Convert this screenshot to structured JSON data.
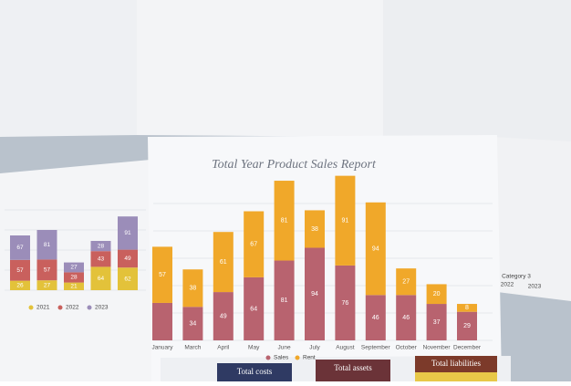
{
  "chart_data": [
    {
      "type": "stacked-bar",
      "title": "Total Year Product Sales Report",
      "categories": [
        "January",
        "March",
        "April",
        "May",
        "June",
        "July",
        "August",
        "September",
        "October",
        "November",
        "December"
      ],
      "series": [
        {
          "name": "Sales",
          "color": "#b8636f",
          "values": [
            38,
            34,
            49,
            64,
            81,
            94,
            76,
            46,
            46,
            37,
            29
          ]
        },
        {
          "name": "Rent",
          "color": "#f0a82a",
          "values": [
            57,
            38,
            61,
            67,
            81,
            38,
            91,
            94,
            27,
            20,
            8
          ]
        }
      ],
      "value_labels": [
        [
          null,
          "34",
          "49",
          "64",
          "81",
          "94",
          "76",
          "46",
          "46",
          "37",
          "29"
        ],
        [
          "57",
          "38",
          "61",
          "67",
          "81",
          "38",
          "91",
          "94",
          "27",
          "20",
          "8"
        ]
      ],
      "ylim": [
        0,
        200
      ],
      "grid": true
    },
    {
      "type": "stacked-bar",
      "series": [
        {
          "name": "2021",
          "color": "#e3c23a",
          "values": [
            26,
            27,
            21,
            64,
            62
          ]
        },
        {
          "name": "2022",
          "color": "#c9605d",
          "values": [
            57,
            57,
            28,
            43,
            49
          ]
        },
        {
          "name": "2023",
          "color": "#9b8db9",
          "values": [
            67,
            81,
            27,
            28,
            91
          ]
        }
      ],
      "ylim": [
        0,
        200
      ],
      "grid": true
    }
  ],
  "fragments": {
    "cards": [
      "Total costs",
      "Total assets",
      "Total liabilities"
    ],
    "right": [
      "Category 3",
      "2022",
      "2023"
    ]
  }
}
